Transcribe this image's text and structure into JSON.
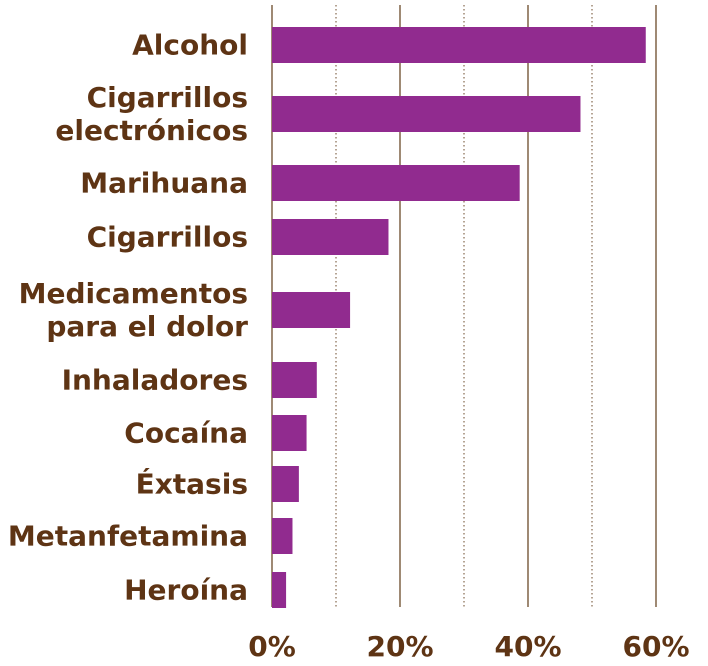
{
  "chart_data": {
    "type": "bar",
    "orientation": "horizontal",
    "categories": [
      [
        "Alcohol"
      ],
      [
        "Cigarrillos",
        "electrónicos"
      ],
      [
        "Marihuana"
      ],
      [
        "Cigarrillos"
      ],
      [
        "Medicamentos",
        "para el dolor"
      ],
      [
        "Inhaladores"
      ],
      [
        "Cocaína"
      ],
      [
        "Éxtasis"
      ],
      [
        "Metanfetamina"
      ],
      [
        "Heroína"
      ]
    ],
    "values": [
      58.4,
      48.2,
      38.7,
      18.2,
      12.2,
      7.0,
      5.4,
      4.2,
      3.2,
      2.2
    ],
    "xlim": [
      0,
      60
    ],
    "x_ticks": [
      "0%",
      "20%",
      "40%",
      "60%"
    ],
    "major_tick_values": [
      0,
      20,
      40,
      60
    ],
    "minor_tick_values": [
      10,
      30,
      50
    ],
    "grid": true,
    "colors": {
      "bar": "#912b8f",
      "text": "#5e3414",
      "grid": "#6b4a2a"
    }
  }
}
